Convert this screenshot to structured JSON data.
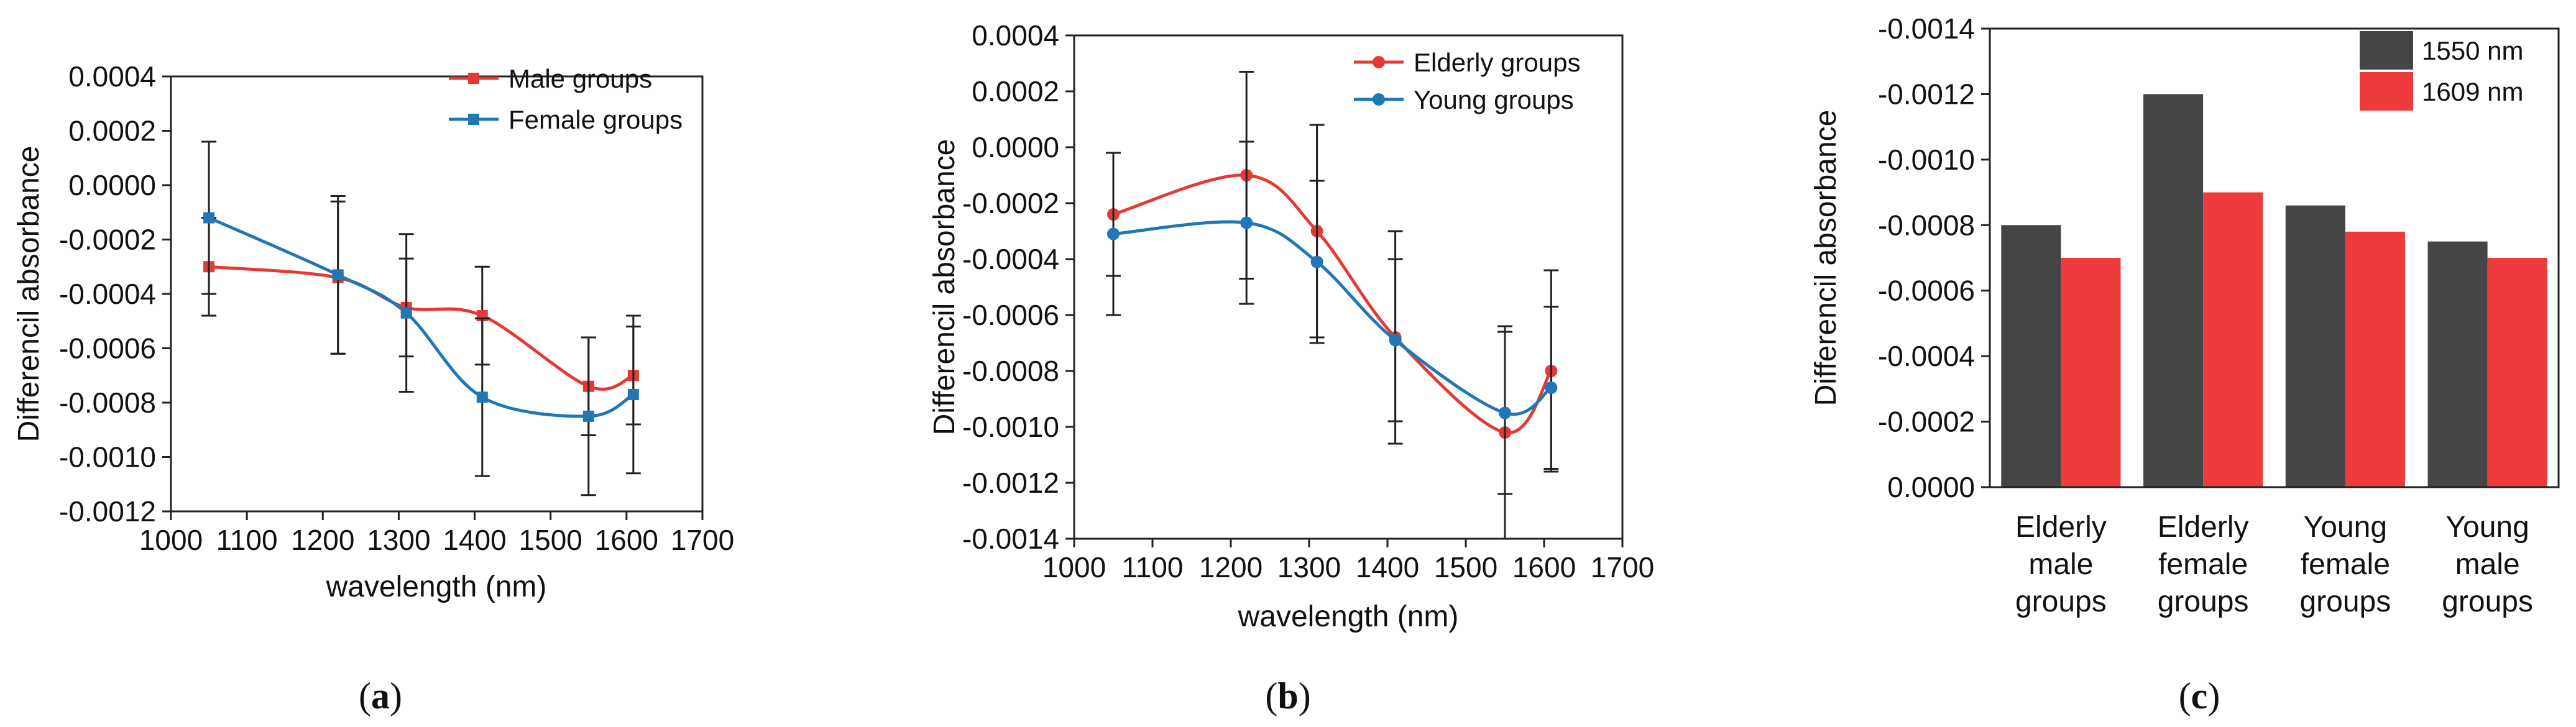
{
  "figure": {
    "panel_labels": [
      "(a)",
      "(b)",
      "(c)"
    ],
    "colors": {
      "red": "#e53935",
      "blue": "#1f77b4",
      "dark_bar": "#454545",
      "red_bar": "#ee3b3b",
      "error_bar": "#222222"
    }
  },
  "chart_data": [
    {
      "id": "a",
      "type": "line",
      "title": "",
      "xlabel": "wavelength (nm)",
      "ylabel": "Differencil absorbance",
      "xlim": [
        1000,
        1700
      ],
      "ylim": [
        -0.0012,
        0.0004
      ],
      "xticks": [
        1000,
        1100,
        1200,
        1300,
        1400,
        1500,
        1600,
        1700
      ],
      "yticks": [
        -0.0012,
        -0.001,
        -0.0008,
        -0.0006,
        -0.0004,
        -0.0002,
        0.0,
        0.0002,
        0.0004
      ],
      "ytick_labels": [
        "-0.0012",
        "-0.0010",
        "-0.0008",
        "-0.0006",
        "-0.0004",
        "-0.0002",
        "0.0000",
        "0.0002",
        "0.0004"
      ],
      "legend_position": "top-right",
      "x": [
        1050,
        1220,
        1310,
        1410,
        1550,
        1609
      ],
      "series": [
        {
          "name": "Male groups",
          "color": "#e53935",
          "marker": "square",
          "values": [
            -0.0003,
            -0.00034,
            -0.00045,
            -0.00048,
            -0.00074,
            -0.0007
          ],
          "errors": [
            0.00018,
            0.00028,
            0.00018,
            0.00018,
            0.00018,
            0.00018
          ]
        },
        {
          "name": "Female groups",
          "color": "#1f77b4",
          "marker": "square",
          "values": [
            -0.00012,
            -0.00033,
            -0.00047,
            -0.00078,
            -0.00085,
            -0.00077
          ],
          "errors": [
            0.00028,
            0.00029,
            0.00029,
            0.00029,
            0.00029,
            0.00029
          ]
        }
      ]
    },
    {
      "id": "b",
      "type": "line",
      "title": "",
      "xlabel": "wavelength (nm)",
      "ylabel": "Differencil absorbance",
      "xlim": [
        1000,
        1700
      ],
      "ylim": [
        -0.0014,
        0.0004
      ],
      "xticks": [
        1000,
        1100,
        1200,
        1300,
        1400,
        1500,
        1600,
        1700
      ],
      "yticks": [
        -0.0014,
        -0.0012,
        -0.001,
        -0.0008,
        -0.0006,
        -0.0004,
        -0.0002,
        0.0,
        0.0002,
        0.0004
      ],
      "ytick_labels": [
        "-0.0014",
        "-0.0012",
        "-0.0010",
        "-0.0008",
        "-0.0006",
        "-0.0004",
        "-0.0002",
        "0.0000",
        "0.0002",
        "0.0004"
      ],
      "legend_position": "top-right",
      "x": [
        1050,
        1220,
        1310,
        1410,
        1550,
        1609
      ],
      "series": [
        {
          "name": "Elderly groups",
          "color": "#e53935",
          "marker": "circle",
          "values": [
            -0.00024,
            -0.0001,
            -0.0003,
            -0.00068,
            -0.00102,
            -0.0008
          ],
          "errors": [
            0.00022,
            0.00037,
            0.00038,
            0.00038,
            0.00038,
            0.00036
          ]
        },
        {
          "name": "Young groups",
          "color": "#1f77b4",
          "marker": "circle",
          "values": [
            -0.00031,
            -0.00027,
            -0.00041,
            -0.00069,
            -0.00095,
            -0.00086
          ],
          "errors": [
            0.00029,
            0.00029,
            0.00029,
            0.00029,
            0.00029,
            0.00029
          ]
        }
      ]
    },
    {
      "id": "c",
      "type": "bar",
      "title": "",
      "xlabel": "",
      "ylabel": "Differencil absorbance",
      "ylim": [
        0.0,
        -0.0014
      ],
      "y_axis_inverted": true,
      "yticks": [
        0.0,
        -0.0002,
        -0.0004,
        -0.0006,
        -0.0008,
        -0.001,
        -0.0012,
        -0.0014
      ],
      "ytick_labels": [
        "0.0000",
        "-0.0002",
        "-0.0004",
        "-0.0006",
        "-0.0008",
        "-0.0010",
        "-0.0012",
        "-0.0014"
      ],
      "legend_position": "top-right",
      "categories": [
        [
          "Elderly",
          "male",
          "groups"
        ],
        [
          "Elderly",
          "female",
          "groups"
        ],
        [
          "Young",
          "female",
          "groups"
        ],
        [
          "Young",
          "male",
          "groups"
        ]
      ],
      "series": [
        {
          "name": "1550 nm",
          "color": "#454545",
          "values": [
            -0.0008,
            -0.0012,
            -0.00086,
            -0.00075
          ]
        },
        {
          "name": "1609 nm",
          "color": "#ee3b3b",
          "values": [
            -0.0007,
            -0.0009,
            -0.00078,
            -0.0007
          ]
        }
      ]
    }
  ]
}
